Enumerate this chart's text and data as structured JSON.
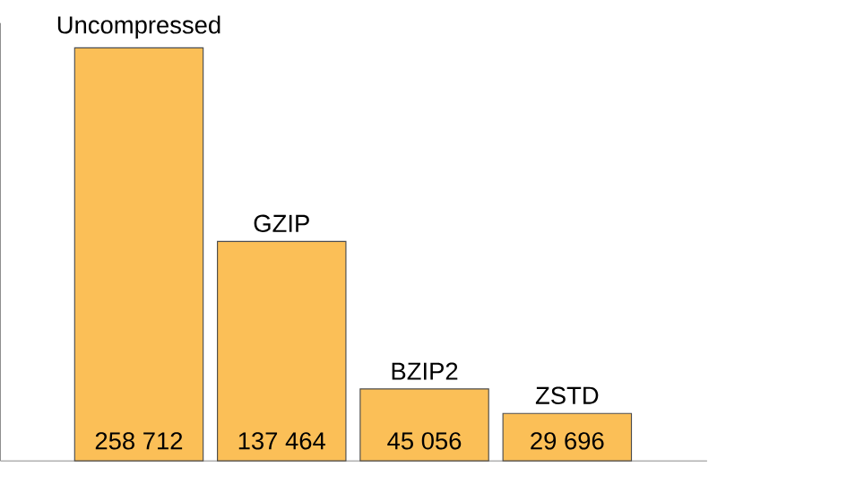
{
  "chart_data": {
    "type": "bar",
    "categories": [
      "Uncompressed",
      "GZIP",
      "BZIP2",
      "ZSTD"
    ],
    "values": [
      258712,
      137464,
      45056,
      29696
    ],
    "value_labels": [
      "258 712",
      "137 464",
      "45 056",
      "29 696"
    ],
    "color": "#fbbf57"
  }
}
